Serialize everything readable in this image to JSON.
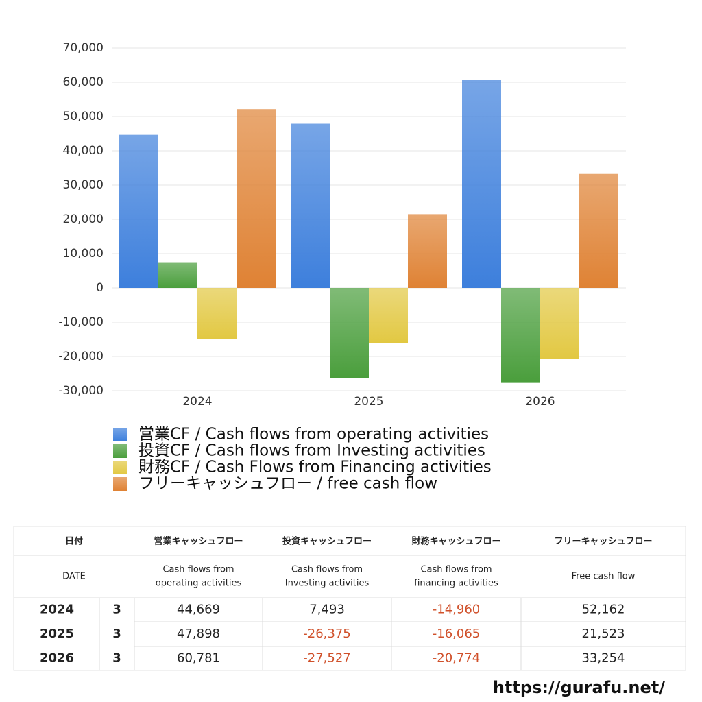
{
  "chart_data": {
    "type": "bar",
    "categories": [
      "2024",
      "2025",
      "2026"
    ],
    "series": [
      {
        "name": "営業CF / Cash flows from operating activities",
        "color": "#3d7fdc",
        "values": [
          44669,
          47898,
          60781
        ]
      },
      {
        "name": "投資CF / Cash flows from Investing activities",
        "color": "#4a9e3c",
        "values": [
          7493,
          -26375,
          -27527
        ]
      },
      {
        "name": "財務CF / Cash Flows from Financing activities",
        "color": "#e2c842",
        "values": [
          -14960,
          -16065,
          -20774
        ]
      },
      {
        "name": "フリーキャッシュフロー / free cash flow",
        "color": "#df8234",
        "values": [
          52162,
          21523,
          33254
        ]
      }
    ],
    "ylim": [
      -30000,
      70000
    ],
    "yticks": [
      {
        "value": -30000,
        "label": "-30,000"
      },
      {
        "value": -20000,
        "label": "-20,000"
      },
      {
        "value": -10000,
        "label": "-10,000"
      },
      0,
      {
        "value": 10000,
        "label": "10,000"
      },
      {
        "value": 20000,
        "label": "20,000"
      },
      {
        "value": 30000,
        "label": "30,000"
      },
      {
        "value": 40000,
        "label": "40,000"
      },
      {
        "value": 50000,
        "label": "50,000"
      },
      {
        "value": 60000,
        "label": "60,000"
      },
      {
        "value": 70000,
        "label": "70,000"
      }
    ],
    "grid": true,
    "legend": "bottom"
  },
  "table": {
    "header": [
      "日付",
      "営業キャッシュフロー",
      "投資キャッシュフロー",
      "財務キャッシュフロー",
      "フリーキャッシュフロー"
    ],
    "subheader": [
      [
        "DATE"
      ],
      [
        "Cash flows from",
        "operating activities"
      ],
      [
        "Cash flows from",
        "Investing activities"
      ],
      [
        "Cash flows from",
        "financing activities"
      ],
      [
        "Free cash flow"
      ]
    ],
    "rows": [
      [
        "2024",
        "3",
        "44,669",
        "7,493",
        "-14,960",
        "52,162"
      ],
      [
        "2025",
        "3",
        "47,898",
        "-26,375",
        "-16,065",
        "21,523"
      ],
      [
        "2026",
        "3",
        "60,781",
        "-27,527",
        "-20,774",
        "33,254"
      ]
    ],
    "negative_color": "#d0502a"
  },
  "footer": {
    "url": "https://gurafu.net/"
  }
}
